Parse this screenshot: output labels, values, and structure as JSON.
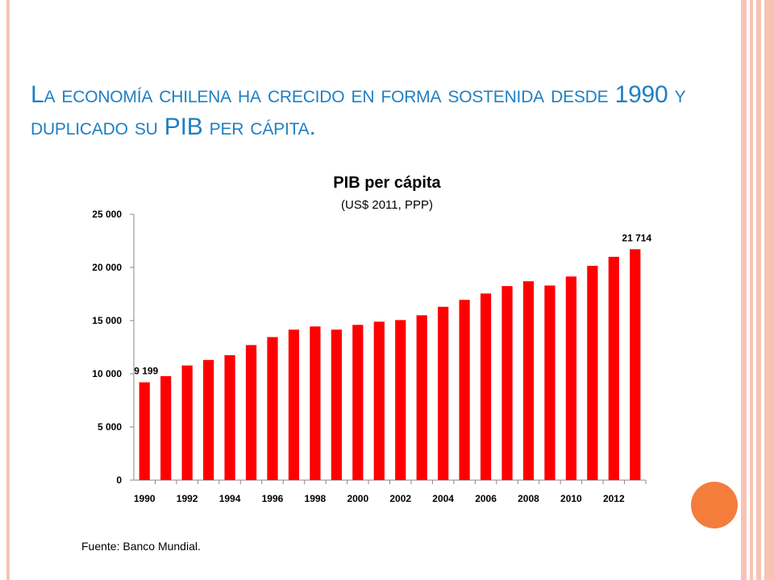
{
  "slide": {
    "title": "La economía chilena ha crecido en forma sostenida desde 1990 y duplicado su PIB per cápita.",
    "source": "Fuente: Banco Mundial.",
    "accent_color": "#1f7fc2",
    "frame_color": "#f6c3b5",
    "dot_color": "#f47d3b"
  },
  "chart_data": {
    "type": "bar",
    "title": "PIB per cápita",
    "subtitle": "(US$ 2011, PPP)",
    "xlabel": "",
    "ylabel": "",
    "ylim": [
      0,
      25000
    ],
    "yticks": [
      0,
      5000,
      10000,
      15000,
      20000,
      25000
    ],
    "ytick_labels": [
      "0",
      "5 000",
      "10 000",
      "15 000",
      "20 000",
      "25 000"
    ],
    "xtick_labels": [
      "1990",
      "1992",
      "1994",
      "1996",
      "1998",
      "2000",
      "2002",
      "2004",
      "2006",
      "2008",
      "2010",
      "2012"
    ],
    "bar_color": "#ff0000",
    "grid": false,
    "legend": "none",
    "categories": [
      "1990",
      "1991",
      "1992",
      "1993",
      "1994",
      "1995",
      "1996",
      "1997",
      "1998",
      "1999",
      "2000",
      "2001",
      "2002",
      "2003",
      "2004",
      "2005",
      "2006",
      "2007",
      "2008",
      "2009",
      "2010",
      "2011",
      "2012",
      "2013"
    ],
    "values": [
      9199,
      9780,
      10780,
      11300,
      11750,
      12700,
      13450,
      14150,
      14450,
      14150,
      14600,
      14900,
      15050,
      15500,
      16300,
      16950,
      17550,
      18250,
      18700,
      18300,
      19150,
      20150,
      21000,
      21714
    ],
    "data_labels": [
      {
        "category": "1990",
        "text": "9 199"
      },
      {
        "category": "2013",
        "text": "21 714"
      }
    ]
  }
}
